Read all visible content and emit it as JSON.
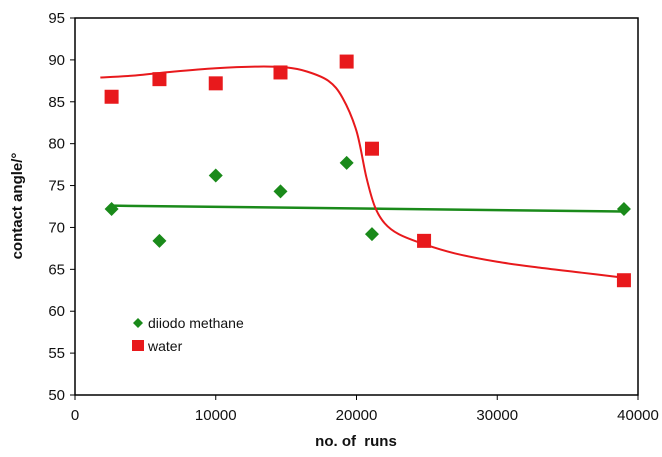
{
  "chart_data": {
    "type": "scatter",
    "title": "",
    "xlabel": "no. of  runs",
    "ylabel": "contact angle/°",
    "xlim": [
      0,
      40000
    ],
    "ylim": [
      50,
      95
    ],
    "x_ticks": [
      0,
      10000,
      20000,
      30000,
      40000
    ],
    "y_ticks": [
      50,
      55,
      60,
      65,
      70,
      75,
      80,
      85,
      90,
      95
    ],
    "grid": false,
    "legend_position": "bottom-left",
    "series": [
      {
        "name": "diiodo methane",
        "marker": "diamond",
        "color": "#1a8a1a",
        "points": [
          [
            2600,
            72.2
          ],
          [
            6000,
            68.4
          ],
          [
            10000,
            76.2
          ],
          [
            14600,
            74.3
          ],
          [
            19300,
            77.7
          ],
          [
            21100,
            69.2
          ],
          [
            39000,
            72.2
          ]
        ],
        "fit_line": [
          [
            2600,
            72.6
          ],
          [
            39000,
            71.9
          ]
        ]
      },
      {
        "name": "water",
        "marker": "square",
        "color": "#e8191c",
        "points": [
          [
            2600,
            85.6
          ],
          [
            6000,
            87.7
          ],
          [
            10000,
            87.2
          ],
          [
            14600,
            88.5
          ],
          [
            19300,
            89.8
          ],
          [
            21100,
            79.4
          ],
          [
            24800,
            68.4
          ],
          [
            39000,
            63.7
          ]
        ],
        "fit_curve": [
          [
            1800,
            87.9
          ],
          [
            4000,
            88.1
          ],
          [
            7000,
            88.6
          ],
          [
            10000,
            89.0
          ],
          [
            13000,
            89.2
          ],
          [
            15000,
            89.1
          ],
          [
            16500,
            88.6
          ],
          [
            18000,
            87.5
          ],
          [
            19000,
            85.5
          ],
          [
            20000,
            81.5
          ],
          [
            20700,
            76.0
          ],
          [
            21300,
            72.5
          ],
          [
            22000,
            70.5
          ],
          [
            23000,
            69.2
          ],
          [
            24800,
            68.0
          ],
          [
            27000,
            66.9
          ],
          [
            30000,
            65.9
          ],
          [
            33000,
            65.2
          ],
          [
            36000,
            64.6
          ],
          [
            39000,
            64.0
          ]
        ]
      }
    ]
  }
}
